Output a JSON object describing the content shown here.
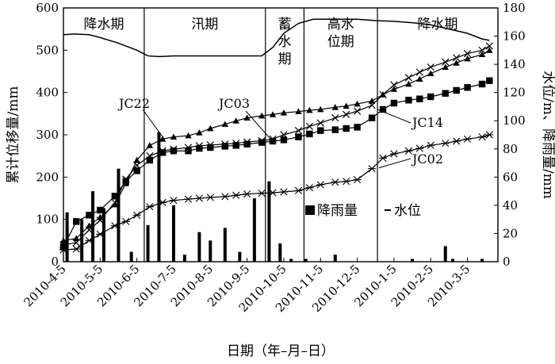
{
  "chart_data": {
    "type": "line",
    "xlabel": "日期（年–月–日）",
    "ylabel_left": "累计位移量/mm",
    "ylabel_right": "水位/m、降雨量/mm",
    "ylim_left": [
      0,
      600
    ],
    "ylim_right": [
      0,
      180
    ],
    "yticks_left": [
      "0",
      "100",
      "200",
      "300",
      "400",
      "500",
      "600"
    ],
    "yticks_right": [
      "0",
      "20",
      "40",
      "60",
      "80",
      "100",
      "120",
      "140",
      "160",
      "180"
    ],
    "xticks": [
      "2010-4-5",
      "2010-5-5",
      "2010-6-5",
      "2010-7-5",
      "2010-8-5",
      "2010-9-5",
      "2010-10-5",
      "2010-11-5",
      "2010-12-5",
      "2010-1-5",
      "2010-2-5",
      "2010-3-5"
    ],
    "periods": [
      {
        "label": "降水期",
        "lines": [
          "降水期"
        ],
        "end_month": 2.2
      },
      {
        "label": "汛期",
        "lines": [
          "汛期"
        ],
        "end_month": 5.5
      },
      {
        "label": "蓄水期",
        "lines": [
          "蓄",
          "水",
          "期"
        ],
        "end_month": 6.55
      },
      {
        "label": "高水位期",
        "lines": [
          "高水",
          "位期"
        ],
        "end_month": 8.55
      },
      {
        "label": "降水期",
        "lines": [
          "降水期"
        ],
        "end_month": 11.5
      }
    ],
    "series": [
      {
        "name": "JC22",
        "marker": "triangle",
        "x": [
          0,
          0.35,
          0.7,
          1.0,
          1.4,
          1.7,
          2.0,
          2.35,
          2.7,
          3.0,
          3.4,
          3.7,
          4.0,
          4.4,
          4.7,
          5.0,
          5.4,
          5.7,
          6.0,
          6.4,
          6.7,
          7.0,
          7.4,
          7.7,
          8.0,
          8.4,
          8.7,
          9.0,
          9.4,
          9.7,
          10.0,
          10.4,
          10.7,
          11.0,
          11.4,
          11.6
        ],
        "values": [
          50,
          55,
          85,
          105,
          135,
          185,
          240,
          275,
          290,
          295,
          298,
          305,
          315,
          325,
          333,
          340,
          345,
          348,
          352,
          355,
          358,
          360,
          365,
          368,
          373,
          380,
          395,
          408,
          420,
          432,
          445,
          460,
          470,
          480,
          490,
          500
        ]
      },
      {
        "name": "JC03",
        "marker": "x",
        "x": [
          0,
          0.35,
          0.7,
          1.0,
          1.4,
          1.7,
          2.0,
          2.35,
          2.7,
          3.0,
          3.4,
          3.7,
          4.0,
          4.4,
          4.7,
          5.0,
          5.4,
          5.7,
          6.0,
          6.4,
          6.7,
          7.0,
          7.4,
          7.7,
          8.0,
          8.4,
          8.7,
          9.0,
          9.4,
          9.7,
          10.0,
          10.4,
          10.7,
          11.0,
          11.4,
          11.6
        ],
        "values": [
          40,
          45,
          75,
          98,
          140,
          195,
          228,
          250,
          262,
          266,
          270,
          274,
          276,
          278,
          280,
          283,
          286,
          290,
          300,
          310,
          320,
          328,
          340,
          348,
          356,
          370,
          395,
          418,
          435,
          448,
          460,
          472,
          482,
          492,
          500,
          510
        ]
      },
      {
        "name": "JC14",
        "marker": "square",
        "x": [
          0,
          0.35,
          0.7,
          1.0,
          1.4,
          1.7,
          2.0,
          2.35,
          2.7,
          3.0,
          3.4,
          3.7,
          4.0,
          4.4,
          4.7,
          5.0,
          5.4,
          5.7,
          6.0,
          6.4,
          6.7,
          7.0,
          7.4,
          7.7,
          8.0,
          8.4,
          8.7,
          9.0,
          9.4,
          9.7,
          10.0,
          10.4,
          10.7,
          11.0,
          11.4,
          11.6
        ],
        "values": [
          35,
          95,
          110,
          122,
          155,
          190,
          215,
          240,
          258,
          262,
          262,
          268,
          270,
          273,
          275,
          278,
          282,
          285,
          288,
          295,
          302,
          310,
          312,
          315,
          318,
          340,
          360,
          375,
          382,
          385,
          390,
          398,
          405,
          412,
          420,
          428
        ]
      },
      {
        "name": "JC02",
        "marker": "asterisk",
        "x": [
          0,
          0.35,
          0.7,
          1.0,
          1.4,
          1.7,
          2.0,
          2.35,
          2.7,
          3.0,
          3.4,
          3.7,
          4.0,
          4.4,
          4.7,
          5.0,
          5.4,
          5.7,
          6.0,
          6.4,
          6.7,
          7.0,
          7.4,
          7.7,
          8.0,
          8.4,
          8.7,
          9.0,
          9.4,
          9.7,
          10.0,
          10.4,
          10.7,
          11.0,
          11.4,
          11.6
        ],
        "values": [
          28,
          30,
          50,
          65,
          85,
          95,
          110,
          130,
          140,
          145,
          148,
          150,
          152,
          154,
          157,
          160,
          162,
          163,
          165,
          168,
          175,
          182,
          188,
          190,
          194,
          220,
          245,
          255,
          262,
          268,
          275,
          280,
          285,
          290,
          295,
          300
        ]
      }
    ],
    "water_level": {
      "name": "水位",
      "x": [
        0,
        0.3,
        0.7,
        1.0,
        1.5,
        2.0,
        2.3,
        2.6,
        3.0,
        3.5,
        4.0,
        4.5,
        5.0,
        5.4,
        5.7,
        6.0,
        6.4,
        6.8,
        7.2,
        8.0,
        8.5,
        9.0,
        9.5,
        10.0,
        10.5,
        11.0,
        11.4,
        11.6
      ],
      "values": [
        161,
        161.5,
        161,
        159,
        155,
        150,
        146,
        145.5,
        146,
        146,
        146,
        146,
        146,
        146,
        152,
        162,
        169,
        172,
        172,
        172,
        171,
        170.5,
        169.5,
        168,
        165,
        162,
        158,
        157
      ]
    },
    "rainfall": {
      "name": "降雨量",
      "x": [
        0.1,
        0.5,
        0.8,
        1.1,
        1.5,
        1.85,
        2.3,
        2.6,
        3.0,
        3.3,
        3.7,
        4.0,
        4.4,
        4.8,
        5.2,
        5.6,
        5.9,
        6.2,
        6.6,
        7.4,
        9.5,
        10.4,
        10.6,
        11.4
      ],
      "values": [
        35,
        30,
        50,
        38,
        66,
        7,
        26,
        92,
        40,
        5,
        21,
        15,
        24,
        7,
        45,
        57,
        13,
        2,
        2,
        5,
        2,
        11,
        2,
        2
      ]
    },
    "legend": {
      "rainfall": "降雨量",
      "water": "水位"
    }
  }
}
